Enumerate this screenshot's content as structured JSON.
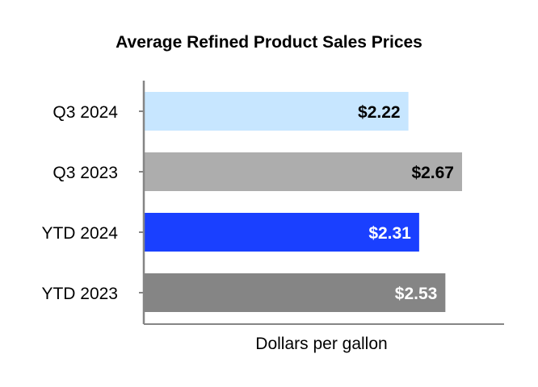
{
  "chart_data": {
    "type": "bar",
    "orientation": "horizontal",
    "title": "Average Refined Product Sales Prices",
    "xlabel": "Dollars per gallon",
    "ylabel": "",
    "categories": [
      "Q3 2024",
      "Q3 2023",
      "YTD 2024",
      "YTD 2023"
    ],
    "values": [
      2.22,
      2.67,
      2.31,
      2.53
    ],
    "value_labels": [
      "$2.22",
      "$2.67",
      "$2.31",
      "$2.53"
    ],
    "xlim": [
      0,
      3.1
    ],
    "grid": false,
    "legend": "none",
    "bar_colors": [
      "#c7e6ff",
      "#adadad",
      "#1a40ff",
      "#858585"
    ],
    "label_colors": [
      "#000000",
      "#000000",
      "#ffffff",
      "#ffffff"
    ],
    "axis_color": "#858585"
  }
}
